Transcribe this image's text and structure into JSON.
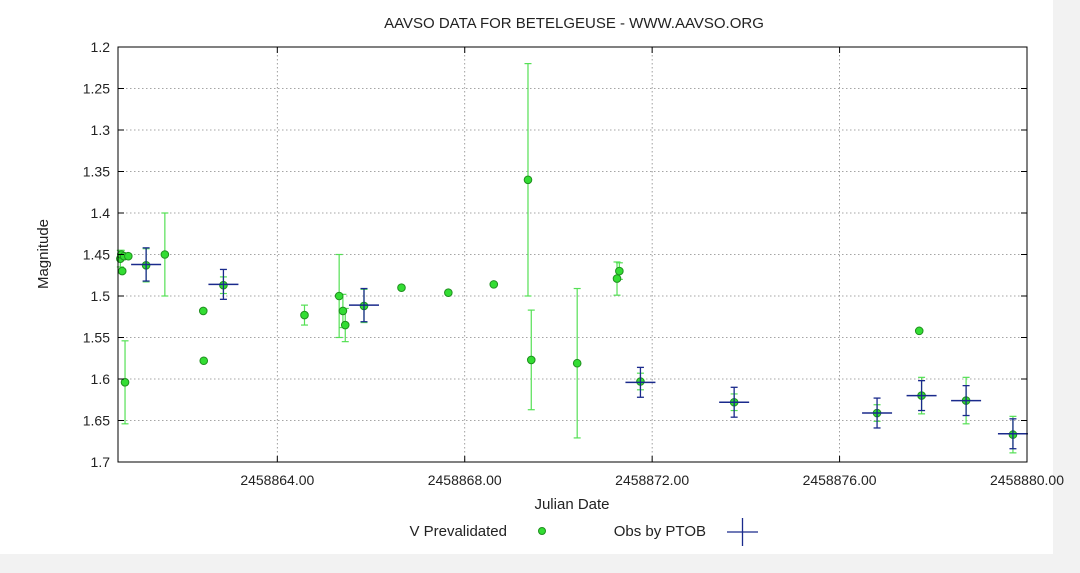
{
  "chart_data": {
    "type": "scatter",
    "title": "AAVSO DATA FOR BETELGEUSE - WWW.AAVSO.ORG",
    "xlabel": "Julian Date",
    "ylabel": "Magnitude",
    "xlim": [
      2458860.6,
      2458880.0
    ],
    "ylim": [
      1.2,
      1.7
    ],
    "y_inverted": true,
    "grid": true,
    "x_ticks": [
      {
        "value": 2458864,
        "label": "2458864.00"
      },
      {
        "value": 2458868,
        "label": "2458868.00"
      },
      {
        "value": 2458872,
        "label": "2458872.00"
      },
      {
        "value": 2458876,
        "label": "2458876.00"
      },
      {
        "value": 2458880,
        "label": "2458880.00"
      }
    ],
    "y_ticks": [
      {
        "value": 1.2,
        "label": "1.2"
      },
      {
        "value": 1.25,
        "label": "1.25"
      },
      {
        "value": 1.3,
        "label": "1.3"
      },
      {
        "value": 1.35,
        "label": "1.35"
      },
      {
        "value": 1.4,
        "label": "1.4"
      },
      {
        "value": 1.45,
        "label": "1.45"
      },
      {
        "value": 1.5,
        "label": "1.5"
      },
      {
        "value": 1.55,
        "label": "1.55"
      },
      {
        "value": 1.6,
        "label": "1.6"
      },
      {
        "value": 1.65,
        "label": "1.65"
      },
      {
        "value": 1.7,
        "label": "1.7"
      }
    ],
    "series": [
      {
        "name": "V Prevalidated",
        "marker": "circle",
        "color": "#33dd33",
        "edge_color": "#1f8f1f",
        "points": [
          {
            "x": 2458860.65,
            "y": 1.455,
            "err": 0.01
          },
          {
            "x": 2458860.67,
            "y": 1.45,
            "err": 0.005
          },
          {
            "x": 2458860.69,
            "y": 1.47,
            "err": 0
          },
          {
            "x": 2458860.73,
            "y": 1.452,
            "err": 0
          },
          {
            "x": 2458860.75,
            "y": 1.604,
            "err": 0.05
          },
          {
            "x": 2458860.82,
            "y": 1.452,
            "err": 0
          },
          {
            "x": 2458861.2,
            "y": 1.463,
            "err": 0.02
          },
          {
            "x": 2458861.6,
            "y": 1.45,
            "err": 0.05
          },
          {
            "x": 2458862.42,
            "y": 1.518,
            "err": 0
          },
          {
            "x": 2458862.43,
            "y": 1.578,
            "err": 0
          },
          {
            "x": 2458862.85,
            "y": 1.487,
            "err": 0.01
          },
          {
            "x": 2458864.58,
            "y": 1.523,
            "err": 0.012
          },
          {
            "x": 2458865.32,
            "y": 1.5,
            "err": 0.05
          },
          {
            "x": 2458865.4,
            "y": 1.518,
            "err": 0.02
          },
          {
            "x": 2458865.45,
            "y": 1.535,
            "err": 0.02
          },
          {
            "x": 2458865.85,
            "y": 1.512,
            "err": 0.02
          },
          {
            "x": 2458866.65,
            "y": 1.49,
            "err": 0
          },
          {
            "x": 2458867.65,
            "y": 1.496,
            "err": 0
          },
          {
            "x": 2458868.62,
            "y": 1.486,
            "err": 0
          },
          {
            "x": 2458869.35,
            "y": 1.36,
            "err": 0.14
          },
          {
            "x": 2458869.42,
            "y": 1.577,
            "err": 0.06
          },
          {
            "x": 2458870.4,
            "y": 1.581,
            "err": 0.09
          },
          {
            "x": 2458871.25,
            "y": 1.479,
            "err": 0.02
          },
          {
            "x": 2458871.3,
            "y": 1.47,
            "err": 0.01
          },
          {
            "x": 2458871.75,
            "y": 1.603,
            "err": 0.01
          },
          {
            "x": 2458873.75,
            "y": 1.628,
            "err": 0.01
          },
          {
            "x": 2458876.8,
            "y": 1.641,
            "err": 0.01
          },
          {
            "x": 2458877.7,
            "y": 1.542,
            "err": 0
          },
          {
            "x": 2458877.75,
            "y": 1.62,
            "err": 0.022
          },
          {
            "x": 2458878.7,
            "y": 1.626,
            "err": 0.028
          },
          {
            "x": 2458879.7,
            "y": 1.667,
            "err": 0.022
          }
        ]
      },
      {
        "name": "Obs by PTOB",
        "marker": "plus",
        "color": "#1a2a8c",
        "points": [
          {
            "x": 2458861.2,
            "y": 1.462,
            "err": 0.02
          },
          {
            "x": 2458862.85,
            "y": 1.486,
            "err": 0.018
          },
          {
            "x": 2458865.85,
            "y": 1.511,
            "err": 0.02
          },
          {
            "x": 2458871.75,
            "y": 1.604,
            "err": 0.018
          },
          {
            "x": 2458873.75,
            "y": 1.628,
            "err": 0.018
          },
          {
            "x": 2458876.8,
            "y": 1.641,
            "err": 0.018
          },
          {
            "x": 2458877.75,
            "y": 1.62,
            "err": 0.018
          },
          {
            "x": 2458878.7,
            "y": 1.626,
            "err": 0.018
          },
          {
            "x": 2458879.7,
            "y": 1.666,
            "err": 0.018
          }
        ]
      }
    ],
    "legend": {
      "position": "bottom-center",
      "entries": [
        "V Prevalidated",
        "Obs by PTOB"
      ]
    }
  }
}
